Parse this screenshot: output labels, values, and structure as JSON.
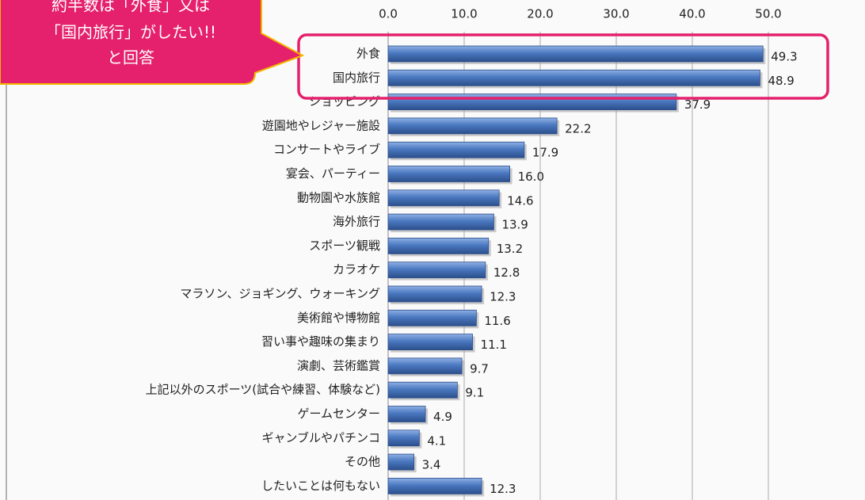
{
  "chart_data": {
    "type": "bar",
    "orientation": "horizontal",
    "categories": [
      "外食",
      "国内旅行",
      "ショッピング",
      "遊園地やレジャー施設",
      "コンサートやライブ",
      "宴会、パーティー",
      "動物園や水族館",
      "海外旅行",
      "スポーツ観戦",
      "カラオケ",
      "マラソン、ジョギング、ウォーキング",
      "美術館や博物館",
      "習い事や趣味の集まり",
      "演劇、芸術鑑賞",
      "上記以外のスポーツ(試合や練習、体験など)",
      "ゲームセンター",
      "ギャンブルやパチンコ",
      "その他",
      "したいことは何もない"
    ],
    "values": [
      49.3,
      48.9,
      37.9,
      22.2,
      17.9,
      16.0,
      14.6,
      13.9,
      13.2,
      12.8,
      12.3,
      11.6,
      11.1,
      9.7,
      9.1,
      4.9,
      4.1,
      3.4,
      12.3
    ],
    "value_labels": [
      "49.3",
      "48.9",
      "37.9",
      "22.2",
      "17.9",
      "16.0",
      "14.6",
      "13.9",
      "13.2",
      "12.8",
      "12.3",
      "11.6",
      "11.1",
      "9.7",
      "9.1",
      "4.9",
      "4.1",
      "3.4",
      "12.3"
    ],
    "color": "#4a78c0",
    "xlim": [
      0,
      60
    ],
    "xticks": [
      {
        "value": 0,
        "label": "0.0"
      },
      {
        "value": 10,
        "label": "10.0"
      },
      {
        "value": 20,
        "label": "20.0"
      },
      {
        "value": 30,
        "label": "30.0"
      },
      {
        "value": 40,
        "label": "40.0"
      },
      {
        "value": 50,
        "label": "50.0"
      }
    ],
    "grid": true,
    "annotation": [
      "約半数は「外食」又は",
      "「国内旅行」がしたい!!",
      "と回答"
    ]
  }
}
